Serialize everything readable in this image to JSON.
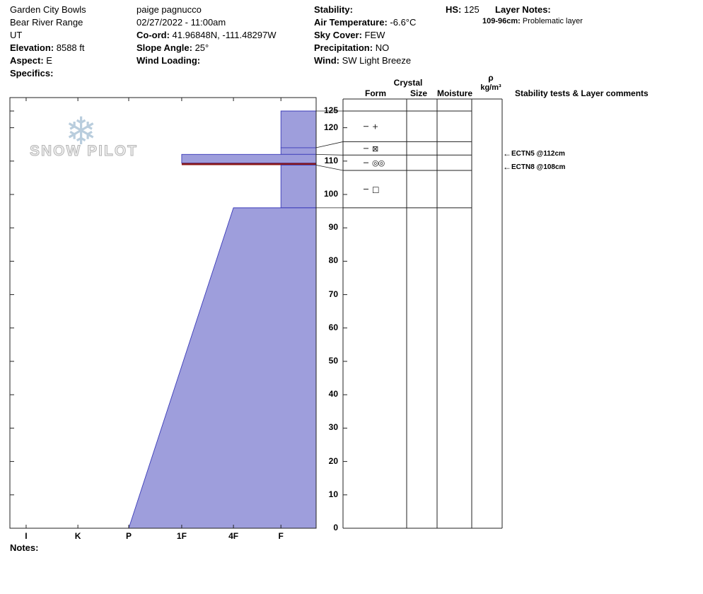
{
  "header_col1": [
    {
      "label": "",
      "value": "Garden City Bowls"
    },
    {
      "label": "",
      "value": "Bear River Range"
    },
    {
      "label": "",
      "value": "UT"
    },
    {
      "label": "Elevation:",
      "value": " 8588 ft"
    },
    {
      "label": "Aspect:",
      "value": " E"
    },
    {
      "label": "Specifics:",
      "value": ""
    }
  ],
  "header_col2": [
    {
      "label": "",
      "value": "paige pagnucco"
    },
    {
      "label": "",
      "value": "02/27/2022 - 11:00am"
    },
    {
      "label": "Co-ord:",
      "value": " 41.96848N, -111.48297W"
    },
    {
      "label": "Slope Angle:",
      "value": " 25°"
    },
    {
      "label": "Wind Loading:",
      "value": ""
    }
  ],
  "header_col3": [
    {
      "label": "Stability:",
      "value": ""
    },
    {
      "label": "Air Temperature:",
      "value": " -6.6°C"
    },
    {
      "label": "Sky Cover:",
      "value": " FEW"
    },
    {
      "label": "Precipitation:",
      "value": " NO"
    },
    {
      "label": "Wind:",
      "value": " SW Light Breeze"
    }
  ],
  "hs": {
    "label": "HS:",
    "value": " 125"
  },
  "layer_notes": {
    "label": "Layer Notes:",
    "entries": [
      {
        "range": "109-96cm:",
        "text": " Problematic layer"
      }
    ]
  },
  "table_headers": {
    "crystal": "Crystal",
    "form": "Form",
    "size": "Size",
    "moisture": "Moisture",
    "rho": "ρ",
    "rho_unit": "kg/m³",
    "stability": "Stability tests & Layer comments"
  },
  "annotations": [
    {
      "depth_cm": 112,
      "text": "ECTN5 @112cm"
    },
    {
      "depth_cm": 108,
      "text": "ECTN8 @108cm"
    }
  ],
  "notes_label": "Notes:",
  "logo_text": "SNOW PILOT",
  "chart_data": {
    "type": "area",
    "description": "Snow pit hardness profile: depth (cm) vs hand hardness",
    "depth_unit": "cm",
    "snow_height_cm": 125,
    "depth_ticks": [
      0,
      10,
      20,
      30,
      40,
      50,
      60,
      70,
      80,
      90,
      100,
      110,
      120,
      125
    ],
    "hardness_categories": [
      "I",
      "K",
      "P",
      "1F",
      "4F",
      "F"
    ],
    "hardness_axis_fractions": [
      0.053,
      0.222,
      0.388,
      0.561,
      0.73,
      0.885
    ],
    "fill_color": "#9e9edc",
    "line_color": "#3b3bb9",
    "critical_color": "#8b1a1a",
    "layers": [
      {
        "top_cm": 125,
        "bottom_cm": 114,
        "hardness_top": "F",
        "hardness_bottom": "F"
      },
      {
        "top_cm": 114,
        "bottom_cm": 112,
        "hardness_top": "F",
        "hardness_bottom": "F"
      },
      {
        "top_cm": 112,
        "bottom_cm": 109.4,
        "hardness_top": "1F",
        "hardness_bottom": "1F"
      },
      {
        "top_cm": 109.4,
        "bottom_cm": 108.8,
        "hardness_top": "1F",
        "hardness_bottom": "1F",
        "critical": true
      },
      {
        "top_cm": 108.8,
        "bottom_cm": 96,
        "hardness_top": "F",
        "hardness_bottom": "F"
      },
      {
        "top_cm": 96,
        "bottom_cm": 0,
        "hardness_top": "4F",
        "hardness_bottom": "P"
      }
    ],
    "table_rows": [
      {
        "top_cm": 125,
        "bottom_cm": 115.8,
        "form": "+"
      },
      {
        "top_cm": 115.8,
        "bottom_cm": 111.8,
        "form": "⊠"
      },
      {
        "top_cm": 111.8,
        "bottom_cm": 107.2,
        "form": "◎◎"
      },
      {
        "top_cm": 107.2,
        "bottom_cm": 96,
        "form": "□"
      },
      {
        "top_cm": 96,
        "bottom_cm": 0,
        "form": ""
      }
    ],
    "connectors": [
      {
        "chart_cm": 125,
        "table_cm": 125
      },
      {
        "chart_cm": 114,
        "table_cm": 115.8
      },
      {
        "chart_cm": 112,
        "table_cm": 111.8
      },
      {
        "chart_cm": 108.8,
        "table_cm": 107.2
      },
      {
        "chart_cm": 96,
        "table_cm": 96
      }
    ]
  }
}
